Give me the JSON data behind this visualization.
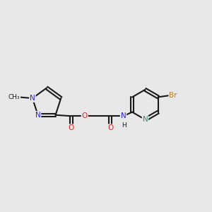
{
  "bg_color": "#e8e8e8",
  "bond_color": "#1a1a1a",
  "N_color": "#2424e0",
  "O_color": "#e82020",
  "Br_color": "#c87820",
  "N_teal": "#408080",
  "line_width": 1.5,
  "font_size_atom": 7.5,
  "font_size_small": 6.5,
  "figsize": [
    3.0,
    3.0
  ],
  "dpi": 100,
  "xlim": [
    0,
    10
  ],
  "ylim": [
    2,
    8
  ]
}
